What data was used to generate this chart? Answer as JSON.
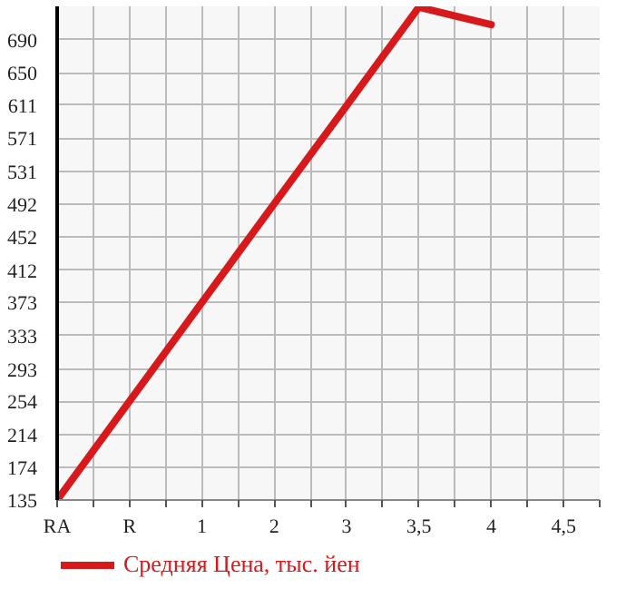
{
  "chart_data": {
    "type": "line",
    "categories": [
      "RA",
      "R",
      "1",
      "2",
      "3",
      "3,5",
      "4",
      "4,5"
    ],
    "series": [
      {
        "name": "Средняя Цена, тыс. йен",
        "color": "#d7191c",
        "values": [
          135,
          254,
          373,
          492,
          610,
          729,
          708,
          null
        ]
      }
    ],
    "ylim": [
      135,
      730
    ],
    "yticks": [
      135,
      174,
      214,
      254,
      293,
      333,
      373,
      412,
      452,
      492,
      531,
      571,
      611,
      650,
      690
    ],
    "grid": true,
    "legend": "bottom",
    "marker": "none",
    "line_style": "solid"
  }
}
